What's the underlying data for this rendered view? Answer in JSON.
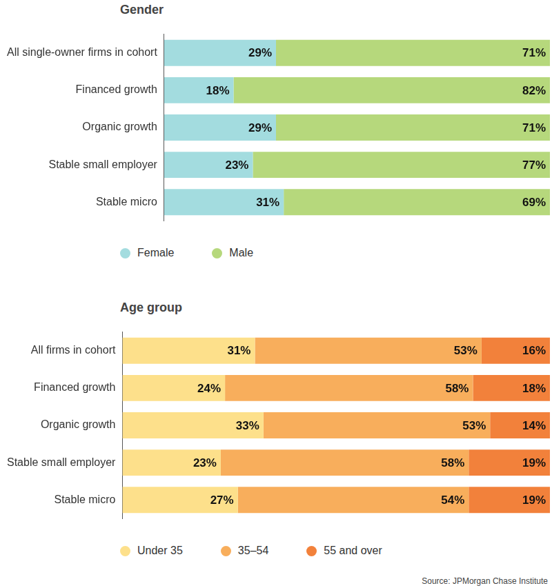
{
  "chart_data": [
    {
      "type": "bar",
      "title": "Gender",
      "orientation": "horizontal",
      "stacked": true,
      "data_labels": true,
      "grid": false,
      "tick_labels": "y",
      "legend": "bottom",
      "categories": [
        "All single-owner firms in cohort",
        "Financed growth",
        "Organic growth",
        "Stable small employer",
        "Stable micro"
      ],
      "xlim": [
        0,
        100
      ],
      "series": [
        {
          "name": "Female",
          "color": "#a3dcdf",
          "values": [
            29,
            18,
            29,
            23,
            31
          ],
          "value_labels": [
            "29%",
            "18%",
            "29%",
            "23%",
            "31%"
          ]
        },
        {
          "name": "Male",
          "color": "#b6d87c",
          "values": [
            71,
            82,
            71,
            77,
            69
          ],
          "value_labels": [
            "71%",
            "82%",
            "71%",
            "77%",
            "69%"
          ]
        }
      ]
    },
    {
      "type": "bar",
      "title": "Age group",
      "orientation": "horizontal",
      "stacked": true,
      "data_labels": true,
      "grid": false,
      "tick_labels": "y",
      "legend": "bottom",
      "categories": [
        "All firms in cohort",
        "Financed growth",
        "Organic growth",
        "Stable small employer",
        "Stable micro"
      ],
      "xlim": [
        0,
        100
      ],
      "series": [
        {
          "name": "Under 35",
          "color": "#fde08b",
          "values": [
            31,
            24,
            33,
            23,
            27
          ],
          "value_labels": [
            "31%",
            "24%",
            "33%",
            "23%",
            "27%"
          ]
        },
        {
          "name": "35–54",
          "color": "#f8ae5c",
          "values": [
            53,
            58,
            53,
            58,
            54
          ],
          "value_labels": [
            "53%",
            "58%",
            "53%",
            "58%",
            "54%"
          ]
        },
        {
          "name": "55 and over",
          "color": "#f2813b",
          "values": [
            16,
            18,
            14,
            19,
            19
          ],
          "value_labels": [
            "16%",
            "18%",
            "14%",
            "19%",
            "19%"
          ]
        }
      ]
    }
  ],
  "source": "Source: JPMorgan Chase Institute"
}
